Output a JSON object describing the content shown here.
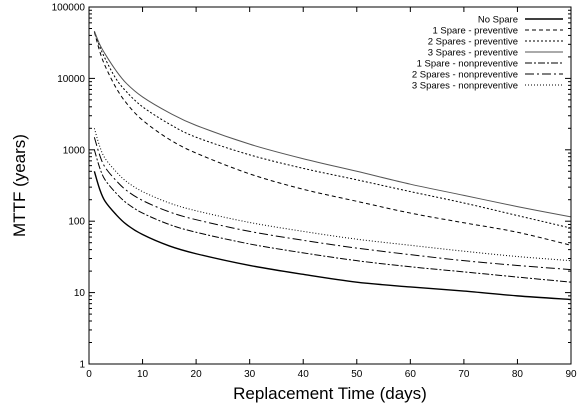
{
  "chart_data": {
    "type": "line",
    "title": "",
    "xlabel": "Replacement Time (days)",
    "ylabel": "MTTF (years)",
    "xlim": [
      0,
      90
    ],
    "ylim": [
      1,
      100000
    ],
    "yscale": "log",
    "grid": false,
    "legend_position": "top-right",
    "x_ticks": [
      0,
      10,
      20,
      30,
      40,
      50,
      60,
      70,
      80,
      90
    ],
    "y_ticks": [
      1,
      10,
      100,
      1000,
      10000,
      100000
    ],
    "x_tick_labels": [
      "0",
      "10",
      "20",
      "30",
      "40",
      "50",
      "60",
      "70",
      "80",
      "90"
    ],
    "y_tick_labels": [
      "1",
      "10",
      "100",
      "1000",
      "10000",
      "100000"
    ],
    "x": [
      1,
      2,
      3,
      5,
      7,
      10,
      15,
      20,
      30,
      40,
      50,
      60,
      70,
      80,
      90
    ],
    "series": [
      {
        "name": "No Spare",
        "dash": "",
        "values": [
          500,
          280,
          190,
          125,
          90,
          65,
          45,
          35,
          24,
          18,
          14,
          12,
          10.5,
          9,
          8
        ]
      },
      {
        "name": "1 Spare - preventive",
        "dash": "4,3",
        "values": [
          45000,
          24000,
          15000,
          7500,
          4500,
          2600,
          1400,
          900,
          460,
          280,
          190,
          130,
          95,
          70,
          46
        ]
      },
      {
        "name": "2 Spares - preventive",
        "dash": "2,2",
        "values": [
          45000,
          28000,
          19000,
          10000,
          6500,
          4000,
          2300,
          1500,
          850,
          550,
          380,
          260,
          180,
          120,
          80
        ]
      },
      {
        "name": "3 Spares - preventive",
        "dash": "",
        "values": [
          46000,
          30000,
          22000,
          13000,
          8500,
          5500,
          3300,
          2200,
          1200,
          750,
          500,
          330,
          230,
          160,
          115
        ]
      },
      {
        "name": "1 Spare - nonpreventive",
        "dash": "7,2,2,2",
        "values": [
          1000,
          560,
          380,
          250,
          180,
          130,
          90,
          70,
          48,
          36,
          28,
          23,
          19.5,
          16.5,
          14
        ]
      },
      {
        "name": "2 Spares - nonpreventive",
        "dash": "9,3,2,3",
        "values": [
          1500,
          840,
          570,
          375,
          270,
          195,
          135,
          105,
          72,
          54,
          42,
          34,
          28,
          24,
          21
        ]
      },
      {
        "name": "3 Spares - nonpreventive",
        "dash": "1,2",
        "values": [
          2000,
          1120,
          760,
          500,
          360,
          260,
          180,
          140,
          96,
          72,
          56,
          46,
          38,
          32,
          28
        ]
      }
    ]
  }
}
